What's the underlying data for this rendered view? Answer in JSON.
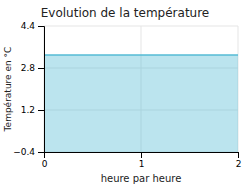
{
  "chart_data": {
    "type": "area",
    "title": "Evolution de la température",
    "xlabel": "heure par heure",
    "ylabel": "Température en °C",
    "x": [
      0,
      2
    ],
    "values": [
      3.3,
      3.3
    ],
    "color": "#55bbd5",
    "xlim": [
      0,
      2
    ],
    "ylim": [
      -0.4,
      4.4
    ],
    "xticks": [
      0,
      1,
      2
    ],
    "yticks": [
      {
        "value": -0.4,
        "label": "−0.4"
      },
      1.2,
      2.8,
      4.4
    ],
    "grid": true
  }
}
